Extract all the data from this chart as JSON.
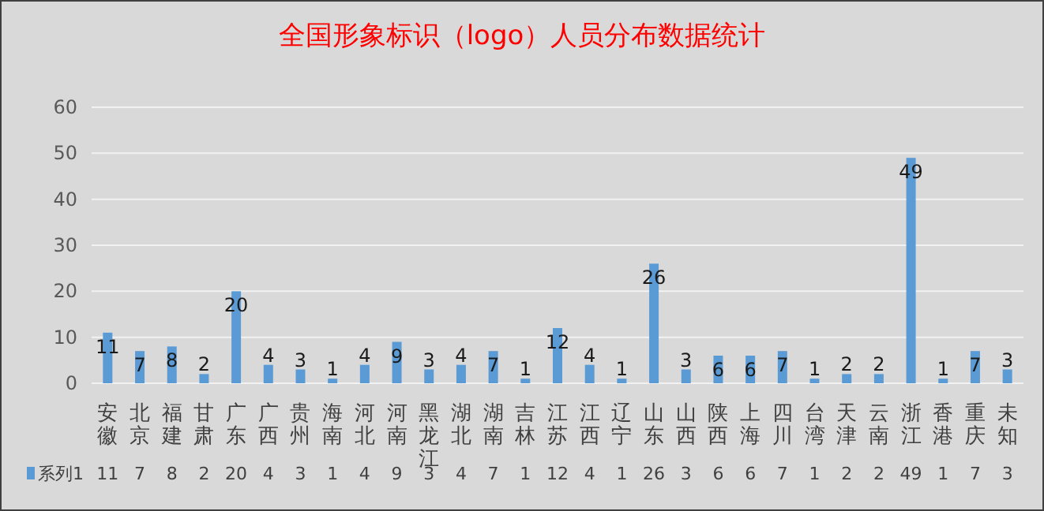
{
  "chart_data": {
    "type": "bar",
    "title": "全国形象标识（logo）人员分布数据统计",
    "categories": [
      "安徽",
      "北京",
      "福建",
      "甘肃",
      "广东",
      "广西",
      "贵州",
      "海南",
      "河北",
      "河南",
      "黑龙江",
      "湖北",
      "湖南",
      "吉林",
      "江苏",
      "江西",
      "辽宁",
      "山东",
      "山西",
      "陕西",
      "上海",
      "四川",
      "台湾",
      "天津",
      "云南",
      "浙江",
      "香港",
      "重庆",
      "未知"
    ],
    "series": [
      {
        "name": "系列1",
        "color": "#5b9bd5",
        "values": [
          11,
          7,
          8,
          2,
          20,
          4,
          3,
          1,
          4,
          9,
          3,
          4,
          7,
          1,
          12,
          4,
          1,
          26,
          3,
          6,
          6,
          7,
          1,
          2,
          2,
          49,
          1,
          7,
          3
        ],
        "value_labels": [
          "11",
          "7",
          "8",
          "2",
          "20",
          "4",
          "3",
          "1",
          "4",
          "9",
          "3",
          "4",
          "7",
          "1",
          "12",
          "4",
          "1",
          "26",
          "3",
          "6",
          "6",
          "7",
          "1",
          "2",
          "2",
          "49",
          "1",
          "7",
          "3"
        ]
      }
    ],
    "ylim": [
      0,
      60
    ],
    "yticks": [
      0,
      10,
      20,
      30,
      40,
      50,
      60
    ],
    "grid": "y",
    "data_labels": true,
    "legend": "bottom"
  }
}
